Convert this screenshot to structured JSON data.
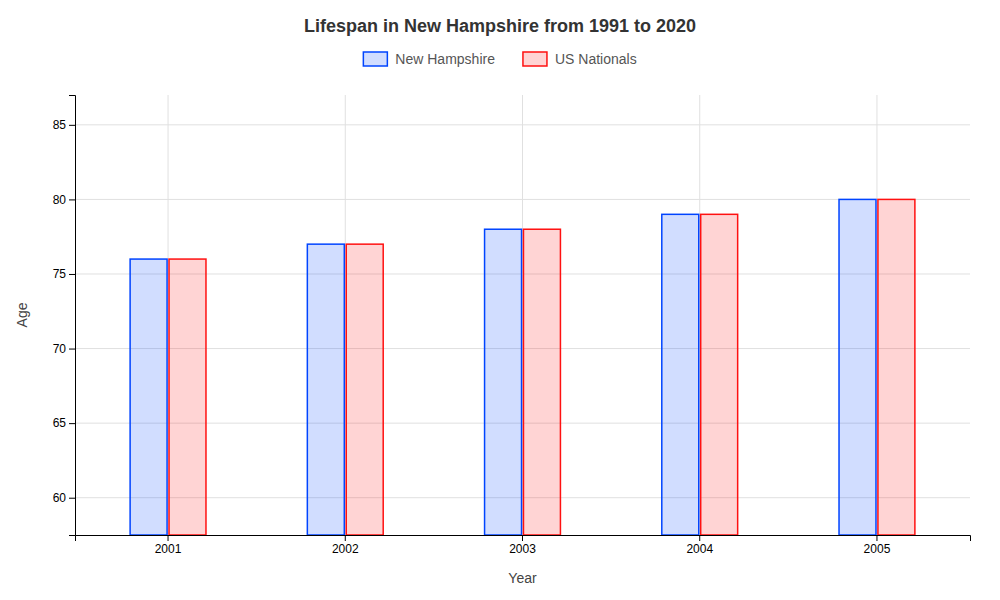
{
  "chart_data": {
    "type": "bar",
    "title": "Lifespan in New Hampshire from 1991 to 2020",
    "xlabel": "Year",
    "ylabel": "Age",
    "categories": [
      "2001",
      "2002",
      "2003",
      "2004",
      "2005"
    ],
    "series": [
      {
        "name": "New Hampshire",
        "color": "#0044ff",
        "values": [
          76,
          77,
          78,
          79,
          80
        ]
      },
      {
        "name": "US Nationals",
        "color": "#ff1111",
        "values": [
          76,
          77,
          78,
          79,
          80
        ]
      }
    ],
    "ylim": [
      57.5,
      87
    ],
    "yticks": [
      60,
      65,
      70,
      75,
      80,
      85
    ],
    "grid": true,
    "legend": "top"
  }
}
